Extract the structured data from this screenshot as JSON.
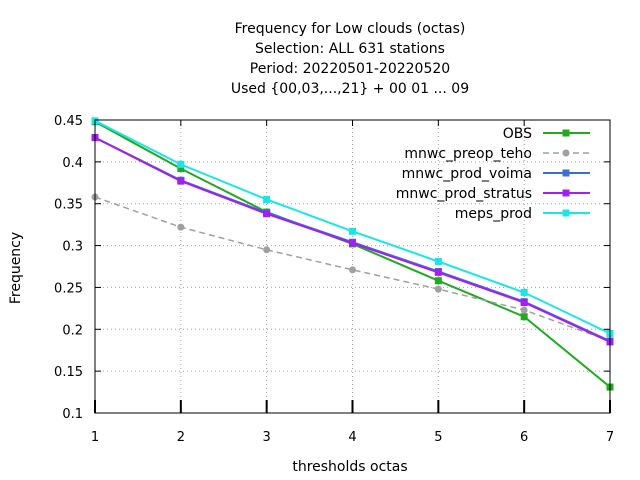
{
  "chart_data": {
    "type": "line",
    "title": [
      "Frequency  for Low clouds (octas)",
      "Selection: ALL    631 stations",
      "Period: 20220501-20220520",
      "Used {00,03,...,21} + 00 01 ... 09"
    ],
    "xlabel": "thresholds octas",
    "ylabel": "Frequency",
    "x": [
      1,
      2,
      3,
      4,
      5,
      6,
      7
    ],
    "xlim": [
      1,
      7
    ],
    "ylim": [
      0.1,
      0.45
    ],
    "xticks": [
      "1",
      "2",
      "3",
      "4",
      "5",
      "6",
      "7"
    ],
    "yticks": [
      "0.1",
      "0.15",
      "0.2",
      "0.25",
      "0.3",
      "0.35",
      "0.4",
      "0.45"
    ],
    "grid": true,
    "legend_position": "top-right",
    "series": [
      {
        "name": "OBS",
        "color": "#1faa1f",
        "dashed": false,
        "marker": "square",
        "values": [
          0.448,
          0.392,
          0.34,
          0.302,
          0.258,
          0.215,
          0.131
        ]
      },
      {
        "name": "mnwc_preop_teho",
        "color": "#a0a0a0",
        "dashed": true,
        "marker": "circle",
        "values": [
          0.358,
          0.322,
          0.295,
          0.271,
          0.248,
          0.223,
          0.186
        ]
      },
      {
        "name": "mnwc_prod_voima",
        "color": "#3a6fd8",
        "dashed": false,
        "marker": "square",
        "values": [
          0.429,
          0.378,
          0.339,
          0.304,
          0.269,
          0.233,
          0.186
        ]
      },
      {
        "name": "mnwc_prod_stratus",
        "color": "#a020f0",
        "dashed": false,
        "marker": "square",
        "values": [
          0.429,
          0.377,
          0.338,
          0.303,
          0.268,
          0.232,
          0.185
        ]
      },
      {
        "name": "meps_prod",
        "color": "#19e6e6",
        "dashed": false,
        "marker": "square",
        "values": [
          0.449,
          0.397,
          0.355,
          0.317,
          0.281,
          0.244,
          0.195
        ]
      }
    ]
  }
}
